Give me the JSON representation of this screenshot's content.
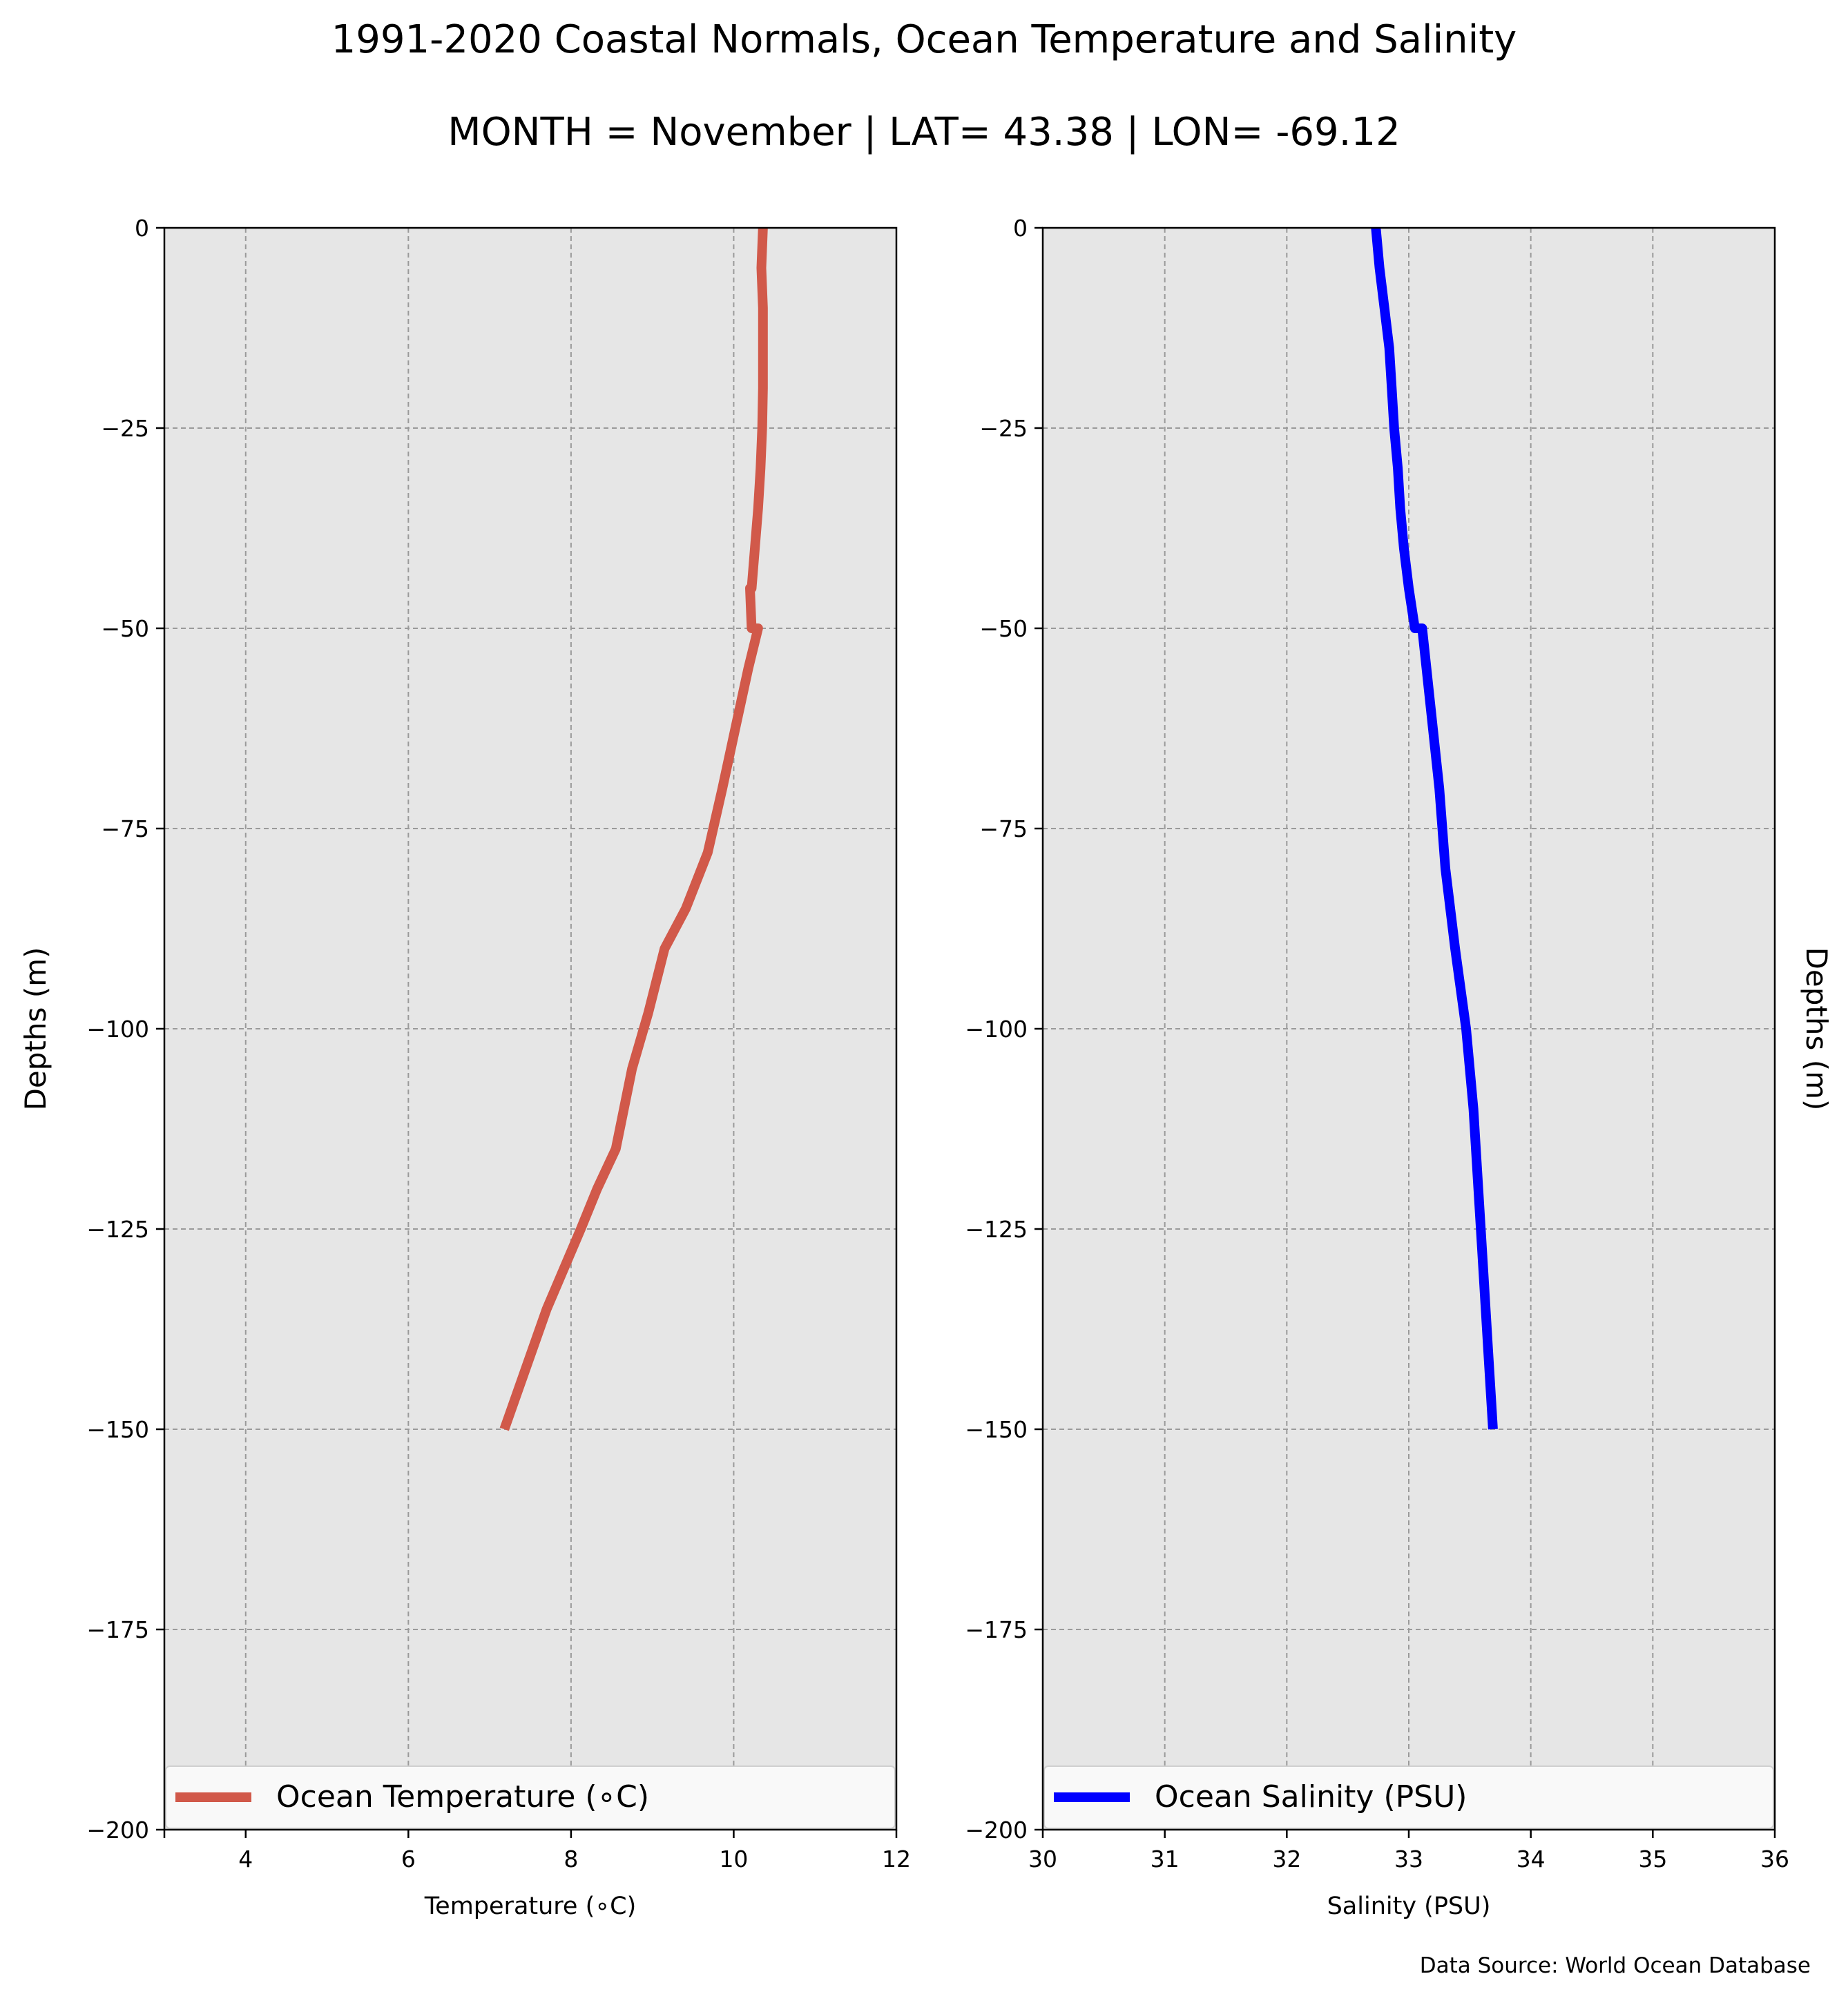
{
  "figure": {
    "title": "1991-2020 Coastal Normals, Ocean Temperature and Salinity",
    "subtitle": "MONTH = November | LAT= 43.38 | LON= -69.12",
    "source": "Data Source: World Ocean Database",
    "background_color": "#e6e6e6",
    "grid_color": "#9a9a9a"
  },
  "chart_data": [
    {
      "type": "line",
      "title": "",
      "xlabel": "Temperature (∘C)",
      "ylabel": "Depths (m)",
      "ylabel_side": "left",
      "xlim": [
        3,
        12
      ],
      "ylim": [
        -200,
        0
      ],
      "xticks": [
        4,
        6,
        8,
        10,
        12
      ],
      "xtick_labels": [
        "4",
        "6",
        "8",
        "10",
        "12"
      ],
      "yticks": [
        0,
        -25,
        -50,
        -75,
        -100,
        -125,
        -150,
        -175,
        -200
      ],
      "ytick_labels": [
        "0",
        "−25",
        "−50",
        "−75",
        "−100",
        "−125",
        "−150",
        "−175",
        "−200"
      ],
      "grid": true,
      "legend": "lower center",
      "series": [
        {
          "name": "Ocean Temperature (∘C)",
          "color": "#d1594a",
          "x": [
            10.36,
            10.34,
            10.36,
            10.36,
            10.36,
            10.35,
            10.33,
            10.3,
            10.26,
            10.22,
            10.2,
            10.22,
            10.3,
            10.18,
            10.03,
            9.86,
            9.68,
            9.41,
            9.15,
            8.95,
            8.75,
            8.55,
            8.32,
            8.12,
            7.7,
            7.18
          ],
          "y": [
            0,
            -5,
            -10,
            -15,
            -20,
            -25,
            -30,
            -35,
            -40,
            -45,
            -45,
            -50,
            -50,
            -55,
            -62,
            -70,
            -78,
            -85,
            -90,
            -98,
            -105,
            -115,
            -120,
            -125,
            -135,
            -150
          ]
        }
      ]
    },
    {
      "type": "line",
      "title": "",
      "xlabel": "Salinity (PSU)",
      "ylabel": "Depths (m)",
      "ylabel_side": "right",
      "xlim": [
        30,
        36
      ],
      "ylim": [
        -200,
        0
      ],
      "xticks": [
        30,
        31,
        32,
        33,
        34,
        35,
        36
      ],
      "xtick_labels": [
        "30",
        "31",
        "32",
        "33",
        "34",
        "35",
        "36"
      ],
      "yticks": [
        0,
        -25,
        -50,
        -75,
        -100,
        -125,
        -150,
        -175,
        -200
      ],
      "ytick_labels": [
        "0",
        "−25",
        "−50",
        "−75",
        "−100",
        "−125",
        "−150",
        "−175",
        "−200"
      ],
      "grid": true,
      "legend": "lower center",
      "series": [
        {
          "name": "Ocean Salinity (PSU)",
          "color": "#0000ff",
          "x": [
            32.73,
            32.76,
            32.8,
            32.84,
            32.86,
            32.88,
            32.91,
            32.93,
            32.96,
            33.0,
            33.05,
            33.11,
            33.18,
            33.25,
            33.3,
            33.38,
            33.47,
            33.5,
            33.53,
            33.57,
            33.61,
            33.65,
            33.69
          ],
          "y": [
            0,
            -5,
            -10,
            -15,
            -20,
            -25,
            -30,
            -35,
            -40,
            -45,
            -50,
            -50,
            -60,
            -70,
            -80,
            -90,
            -100,
            -105,
            -110,
            -120,
            -130,
            -140,
            -150
          ]
        }
      ]
    }
  ]
}
